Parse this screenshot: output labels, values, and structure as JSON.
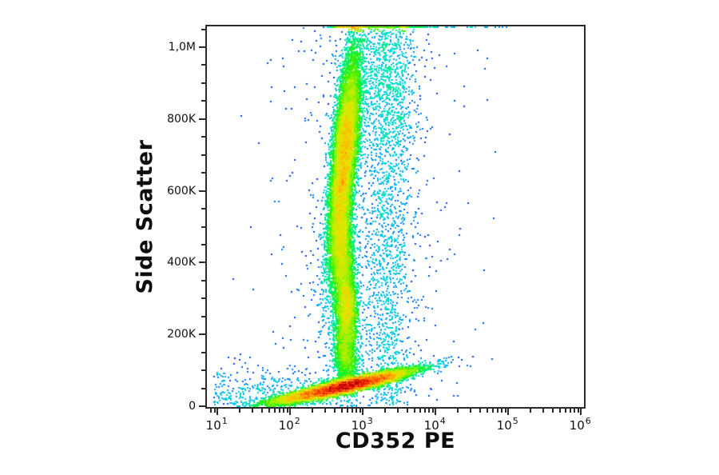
{
  "figure": {
    "background": "#ffffff",
    "xlabel": "CD352 PE",
    "ylabel": "Side Scatter"
  },
  "chart_data": {
    "type": "scatter",
    "subtype": "flow-cytometry-pseudocolor-density-plot",
    "title": "",
    "xlabel": "CD352 PE",
    "ylabel": "Side Scatter",
    "x_scale": "log10",
    "y_scale": "linear",
    "x_range_log10": [
      0.87,
      6.04
    ],
    "y_range": [
      0,
      1058000
    ],
    "y_top_k": 1056,
    "grid": false,
    "legend": "none",
    "seed": 1337,
    "x_major_ticks": [
      {
        "base": "10",
        "exp": "1",
        "log10": 1
      },
      {
        "base": "10",
        "exp": "2",
        "log10": 2
      },
      {
        "base": "10",
        "exp": "3",
        "log10": 3
      },
      {
        "base": "10",
        "exp": "4",
        "log10": 4
      },
      {
        "base": "10",
        "exp": "5",
        "log10": 5
      },
      {
        "base": "10",
        "exp": "6",
        "log10": 6
      }
    ],
    "x_minor_mantissas": [
      2,
      3,
      4,
      5,
      6,
      7,
      8,
      9
    ],
    "y_major_ticks": [
      {
        "label": "0",
        "value": 0
      },
      {
        "label": "200K",
        "value": 200000
      },
      {
        "label": "400K",
        "value": 400000
      },
      {
        "label": "600K",
        "value": 600000
      },
      {
        "label": "800K",
        "value": 800000
      },
      {
        "label": "1,0M",
        "value": 1000000
      }
    ],
    "y_minor_step": 50000,
    "colormap": {
      "name": "jet-density",
      "stops": [
        [
          0.0,
          "#000080"
        ],
        [
          0.1,
          "#0000cd"
        ],
        [
          0.22,
          "#0040ff"
        ],
        [
          0.34,
          "#00a8ff"
        ],
        [
          0.45,
          "#00e0d0"
        ],
        [
          0.55,
          "#00f070"
        ],
        [
          0.65,
          "#30f000"
        ],
        [
          0.73,
          "#a8f000"
        ],
        [
          0.8,
          "#e8e800"
        ],
        [
          0.87,
          "#ffb000"
        ],
        [
          0.93,
          "#ff5000"
        ],
        [
          0.97,
          "#f01800"
        ],
        [
          1.0,
          "#b00000"
        ]
      ]
    },
    "populations": [
      {
        "name": "granulocytes-main",
        "n": 11000,
        "x": {
          "kind": "normal",
          "a": 2.74,
          "b": 0.085
        },
        "y": {
          "kind": "normal",
          "a": 690,
          "b": 155
        },
        "slope": 0.00045,
        "pile_top": true
      },
      {
        "name": "granulocytes-tail",
        "n": 2300,
        "x": {
          "kind": "normal",
          "a": 2.72,
          "b": 0.075
        },
        "y": {
          "kind": "normal",
          "a": 430,
          "b": 70
        }
      },
      {
        "name": "monocytes",
        "n": 1900,
        "x": {
          "kind": "normal",
          "a": 2.78,
          "b": 0.075
        },
        "y": {
          "kind": "normal",
          "a": 285,
          "b": 48
        }
      },
      {
        "name": "debris-stream",
        "n": 2100,
        "x": {
          "kind": "normal",
          "a": 2.76,
          "b": 0.09
        },
        "y": {
          "kind": "normal",
          "a": 165,
          "b": 70
        }
      },
      {
        "name": "lymphocytes-ridge",
        "n": 10500,
        "x": {
          "kind": "normal",
          "a": 2.78,
          "b": 0
        },
        "y": {
          "kind": "normal",
          "a": 58,
          "b": 0
        },
        "ridge": {
          "dx": 1.02,
          "dy": 46,
          "st": 0.42,
          "sp": 9
        }
      },
      {
        "name": "lymph-left-tail",
        "n": 420,
        "x": {
          "kind": "normal",
          "a": 1.95,
          "b": 0
        },
        "y": {
          "kind": "normal",
          "a": 22,
          "b": 0
        },
        "ridge": {
          "dx": 0.28,
          "dy": 9,
          "st": 0.8,
          "sp": 7
        }
      },
      {
        "name": "mid-band",
        "n": 1500,
        "x": {
          "kind": "normal",
          "a": 3.35,
          "b": 0.17
        },
        "y": {
          "kind": "uniform",
          "a": 2,
          "b": 1056
        }
      },
      {
        "name": "top-cloud",
        "n": 520,
        "x": {
          "kind": "normal",
          "a": 3.28,
          "b": 0.22
        },
        "y": {
          "kind": "normal",
          "a": 920,
          "b": 110
        },
        "pile_top": true
      },
      {
        "name": "background-wide",
        "n": 850,
        "x": {
          "kind": "normal",
          "a": 3.05,
          "b": 0.55
        },
        "y": {
          "kind": "uniform",
          "a": 2,
          "b": 1056
        }
      },
      {
        "name": "low-left-scatter",
        "n": 430,
        "x": {
          "kind": "uniform",
          "a": 0.95,
          "b": 2.6
        },
        "y": {
          "kind": "absnormal",
          "a": 4,
          "b": 50
        }
      },
      {
        "name": "sparse-high-left",
        "n": 14,
        "x": {
          "kind": "uniform",
          "a": 1.0,
          "b": 2.4
        },
        "y": {
          "kind": "uniform",
          "a": 300,
          "b": 1040
        }
      },
      {
        "name": "pile-main",
        "n": 310,
        "x": {
          "kind": "normal",
          "a": 2.78,
          "b": 0.1
        },
        "y": {
          "kind": "const",
          "a": 1056
        },
        "pile_top": true
      },
      {
        "name": "pile-wide",
        "n": 190,
        "x": {
          "kind": "normal",
          "a": 3.35,
          "b": 0.33
        },
        "y": {
          "kind": "const",
          "a": 1056
        },
        "pile_top": true
      },
      {
        "name": "pile-hot",
        "n": 55,
        "x": {
          "kind": "normal",
          "a": 3.56,
          "b": 0.018
        },
        "y": {
          "kind": "const",
          "a": 1056
        },
        "pile_top": true
      },
      {
        "name": "pile-scatter",
        "n": 55,
        "x": {
          "kind": "uniform",
          "a": 2.6,
          "b": 5.0
        },
        "y": {
          "kind": "const",
          "a": 1056
        },
        "pile_top": true
      },
      {
        "name": "right-outliers",
        "n": 6,
        "x": {
          "kind": "uniform",
          "a": 4.2,
          "b": 5.0
        },
        "y": {
          "kind": "uniform",
          "a": 5,
          "b": 1000
        }
      }
    ],
    "approx_total_events": 32150
  }
}
